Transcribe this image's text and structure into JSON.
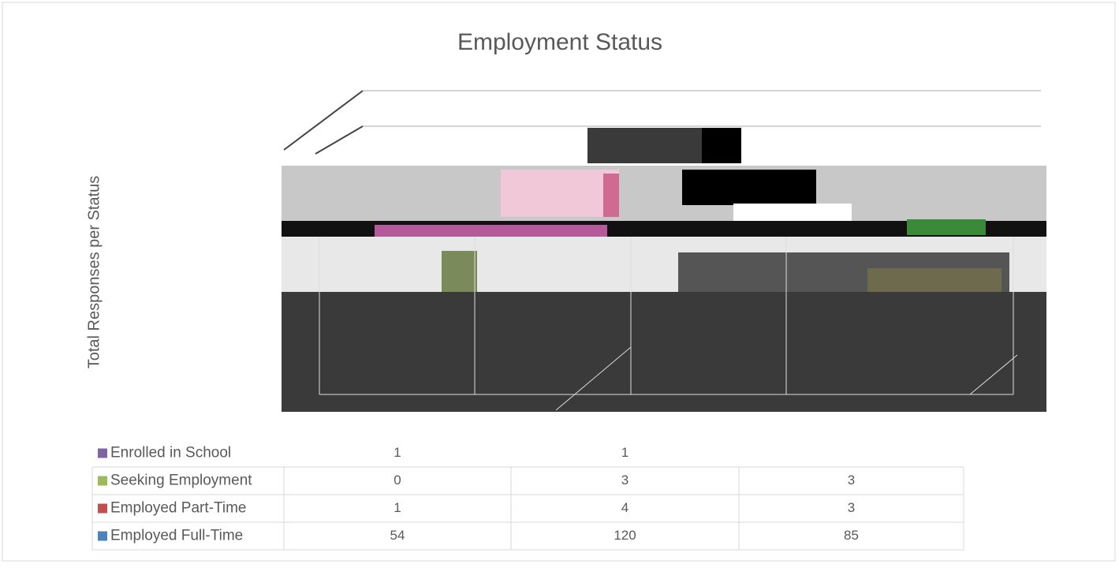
{
  "chart_data": {
    "type": "bar",
    "title": "Employment Status",
    "y_label": "Total Responses per Status",
    "categories": [
      null,
      null,
      null
    ],
    "series": [
      {
        "name": "Enrolled in School",
        "color": "#8064a2",
        "values": [
          1,
          1,
          null
        ]
      },
      {
        "name": "Seeking Employment",
        "color": "#9bbb59",
        "values": [
          0,
          3,
          3
        ]
      },
      {
        "name": "Employed Part-Time",
        "color": "#c0504d",
        "values": [
          1,
          4,
          3
        ]
      },
      {
        "name": "Employed Full-Time",
        "color": "#4f81bd",
        "values": [
          54,
          120,
          85
        ]
      }
    ]
  }
}
